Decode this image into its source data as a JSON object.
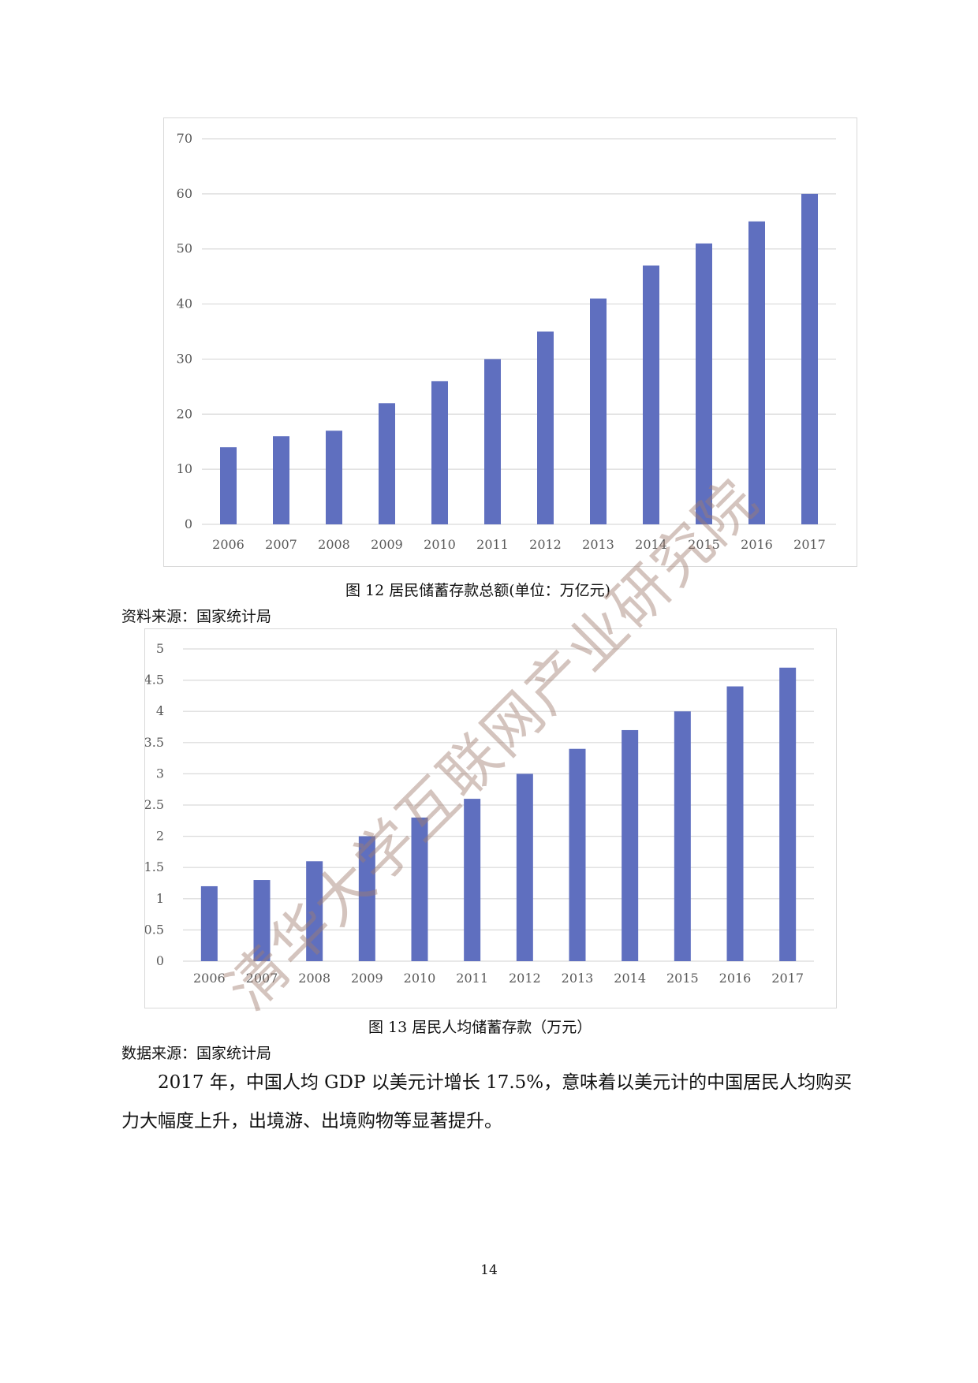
{
  "figure12": {
    "caption": "图 12 居民储蓄存款总额(单位：万亿元)",
    "source": "资料来源：国家统计局"
  },
  "figure13": {
    "caption": "图 13 居民人均储蓄存款（万元）",
    "source": "数据来源：国家统计局"
  },
  "paragraph": "2017 年，中国人均 GDP 以美元计增长 17.5%，意味着以美元计的中国居民人均购买力大幅度上升，出境游、出境购物等显著提升。",
  "page_number": "14",
  "watermark": "清华大学互联网产业研究院",
  "colors": {
    "bar": "#5f6fbf",
    "grid": "#d9d9d9",
    "tick": "#595959"
  },
  "chart_data": [
    {
      "type": "bar",
      "categories": [
        "2006",
        "2007",
        "2008",
        "2009",
        "2010",
        "2011",
        "2012",
        "2013",
        "2014",
        "2015",
        "2016",
        "2017"
      ],
      "values": [
        14,
        16,
        17,
        22,
        26,
        30,
        35,
        41,
        47,
        51,
        55,
        60
      ],
      "ylim": [
        0,
        70
      ],
      "yticks": [
        0,
        10,
        20,
        30,
        40,
        50,
        60,
        70
      ],
      "ytick_labels": [
        "0",
        "10",
        "20",
        "30",
        "40",
        "50",
        "60",
        "70"
      ],
      "grid": true
    },
    {
      "type": "bar",
      "categories": [
        "2006",
        "2007",
        "2008",
        "2009",
        "2010",
        "2011",
        "2012",
        "2013",
        "2014",
        "2015",
        "2016",
        "2017"
      ],
      "values": [
        1.2,
        1.3,
        1.6,
        2.0,
        2.3,
        2.6,
        3.0,
        3.4,
        3.7,
        4.0,
        4.4,
        4.7
      ],
      "ylim": [
        0,
        5
      ],
      "yticks": [
        0,
        0.5,
        1,
        1.5,
        2,
        2.5,
        3,
        3.5,
        4,
        4.5,
        5
      ],
      "ytick_labels": [
        "0",
        "0.5",
        "1",
        "1.5",
        "2",
        "2.5",
        "3",
        "3.5",
        "4",
        "4.5",
        "5"
      ],
      "grid": true
    }
  ]
}
